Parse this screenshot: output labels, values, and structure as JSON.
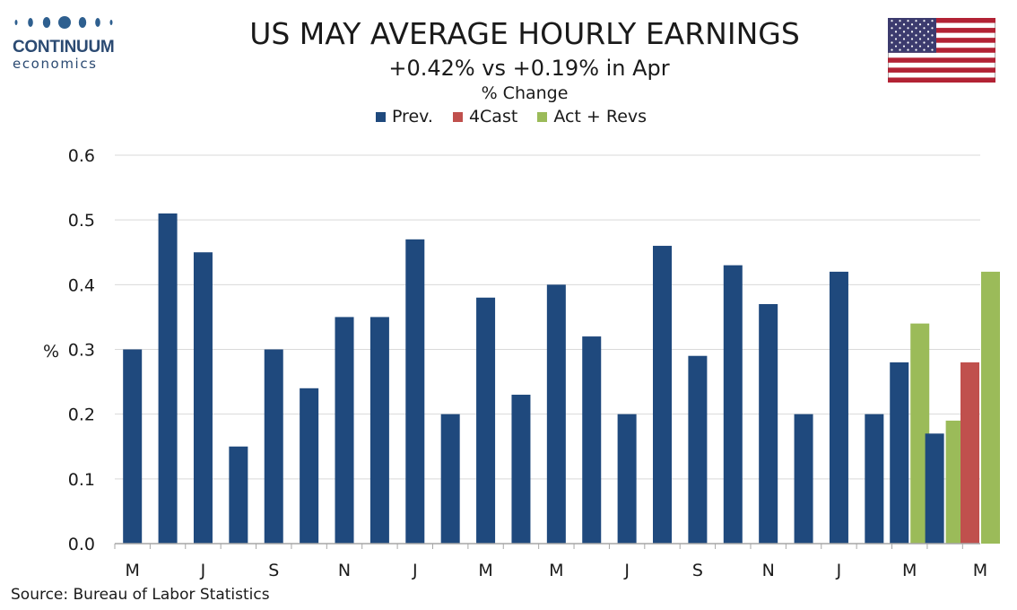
{
  "logo": {
    "name": "CONTINUUM",
    "sub": "economics"
  },
  "header": {
    "title": "US MAY AVERAGE HOURLY EARNINGS",
    "subtitle": "+0.42% vs +0.19% in Apr",
    "unit": "% Change"
  },
  "legend": [
    {
      "label": "Prev.",
      "color": "#1f497d"
    },
    {
      "label": "4Cast",
      "color": "#c0504d"
    },
    {
      "label": "Act + Revs",
      "color": "#9bbb59"
    }
  ],
  "source": "Source: Bureau of Labor Statistics",
  "flag_icon": "us-flag-icon",
  "chart_data": {
    "type": "bar",
    "ylabel": "%",
    "ylim": [
      0,
      0.6
    ],
    "yticks": [
      "0.0",
      "0.1",
      "0.2",
      "0.3",
      "0.4",
      "0.5",
      "0.6"
    ],
    "grid": true,
    "legend_position": "top-center",
    "x_labels": [
      "M",
      "J",
      "S",
      "N",
      "J",
      "M",
      "M",
      "J",
      "S",
      "N",
      "J",
      "M",
      "M"
    ],
    "series": [
      {
        "name": "Prev.",
        "color": "#1f497d",
        "values": [
          0.3,
          0.51,
          0.45,
          0.15,
          0.3,
          0.24,
          0.35,
          0.35,
          0.47,
          0.2,
          0.38,
          0.23,
          0.4,
          0.32,
          0.2,
          0.46,
          0.29,
          0.43,
          0.37,
          0.2,
          0.42,
          0.2,
          0.28,
          0.17,
          null
        ]
      },
      {
        "name": "4Cast",
        "color": "#c0504d",
        "values": [
          null,
          null,
          null,
          null,
          null,
          null,
          null,
          null,
          null,
          null,
          null,
          null,
          null,
          null,
          null,
          null,
          null,
          null,
          null,
          null,
          null,
          null,
          null,
          null,
          0.28
        ]
      },
      {
        "name": "Act + Revs",
        "color": "#9bbb59",
        "values": [
          null,
          null,
          null,
          null,
          null,
          null,
          null,
          null,
          null,
          null,
          null,
          null,
          null,
          null,
          null,
          null,
          null,
          null,
          null,
          null,
          null,
          null,
          0.34,
          0.19,
          0.42
        ]
      }
    ]
  }
}
